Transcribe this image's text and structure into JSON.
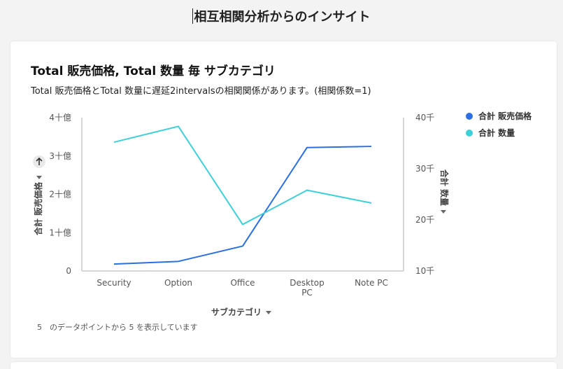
{
  "page": {
    "title": "相互相関分析からのインサイト"
  },
  "card": {
    "title": "Total 販売価格, Total 数量 毎 サブカテゴリ",
    "subtitle": "Total 販売価格とTotal 数量に遅延2intervalsの相関関係があります。(相関係数=1)",
    "footer": "5　のデータポイントから 5 を表示しています"
  },
  "chart_data": {
    "type": "line",
    "categories": [
      "Security",
      "Option",
      "Office",
      "Desktop PC",
      "Note PC"
    ],
    "xlabel": "サブカテゴリ",
    "ylabel": "合計 販売価格",
    "y2label": "合計 数量",
    "ylim": [
      0,
      4000000000
    ],
    "y2lim": [
      10000,
      40000
    ],
    "yticks": [
      "0",
      "1十億",
      "2十億",
      "3十億",
      "4十億"
    ],
    "y2ticks": [
      "10千",
      "20千",
      "30千",
      "40千"
    ],
    "series": [
      {
        "name": "合計 販売価格",
        "axis": "left",
        "color": "#2b6fe0",
        "values": [
          180000000,
          250000000,
          650000000,
          3220000000,
          3250000000
        ]
      },
      {
        "name": "合計 数量",
        "axis": "right",
        "color": "#3fcfd8",
        "values": [
          35200,
          38300,
          19100,
          25800,
          23300
        ]
      }
    ],
    "legend_position": "top-right"
  }
}
